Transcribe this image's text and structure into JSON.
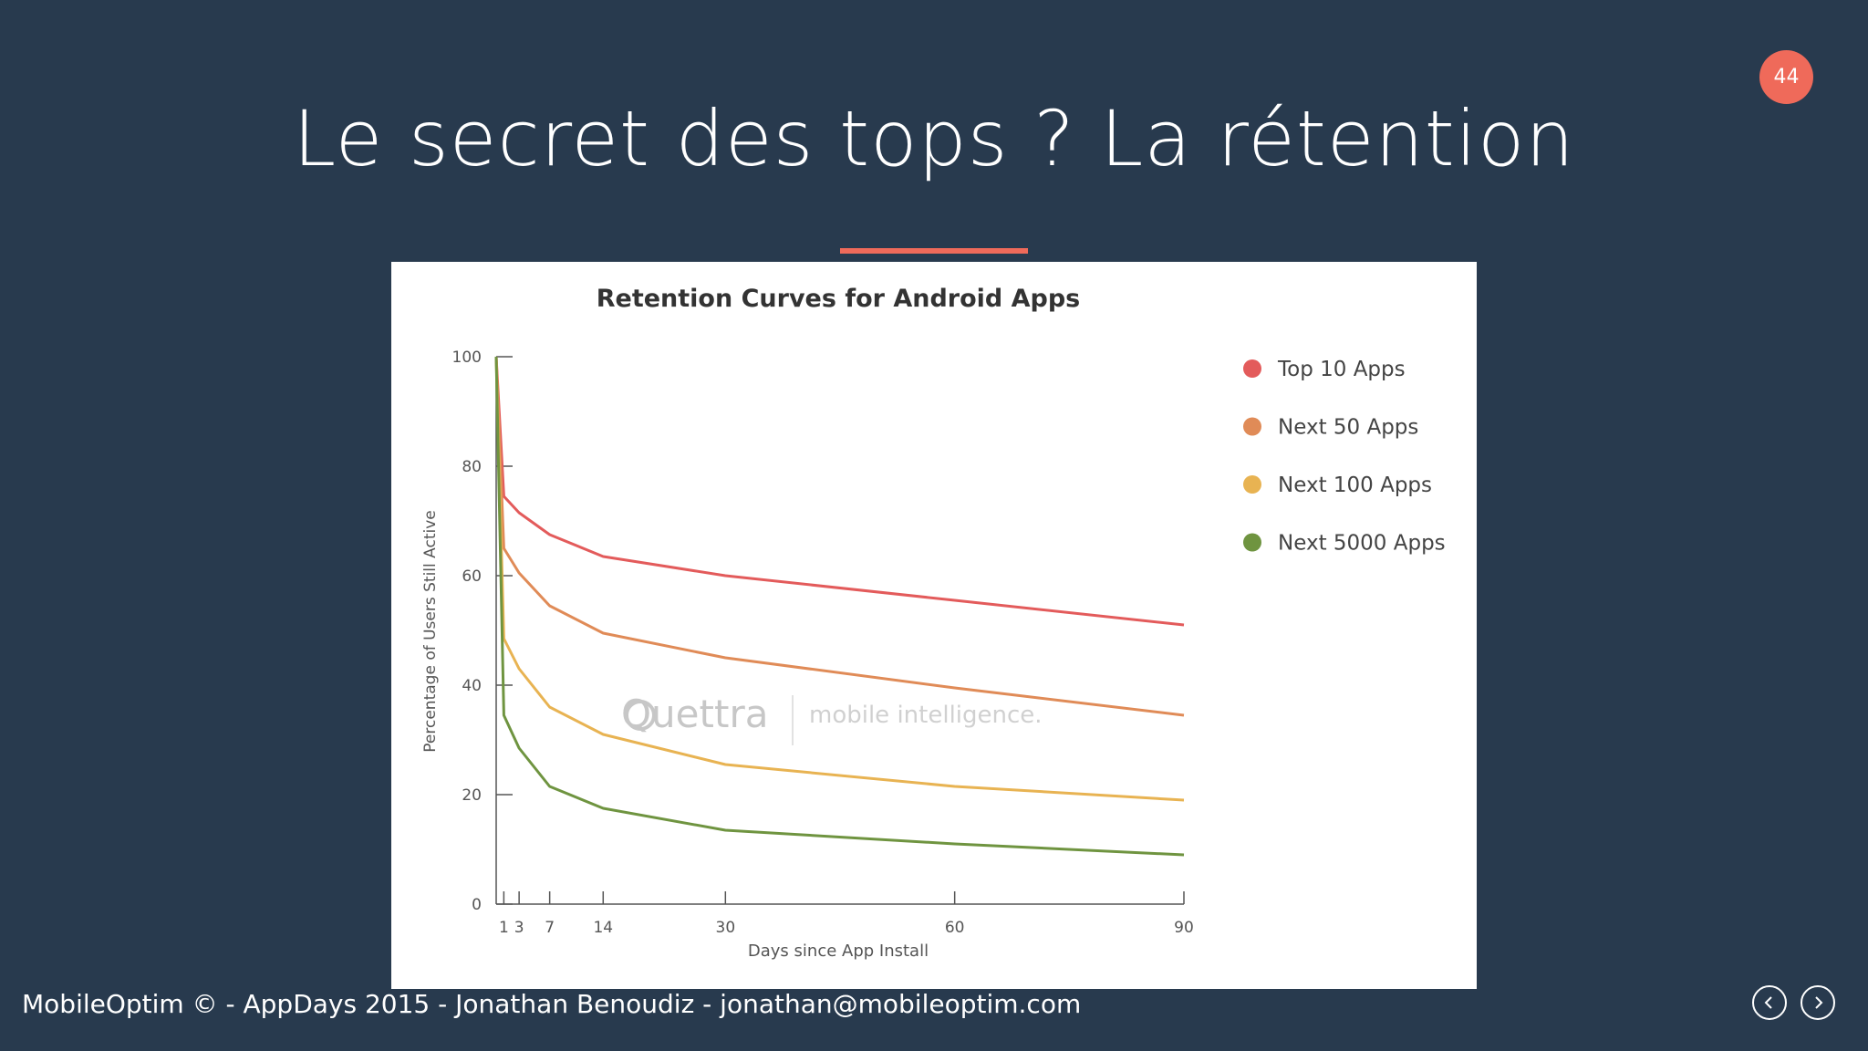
{
  "slide": {
    "number": "44",
    "title": "Le secret des tops ? La rétention",
    "footer": "MobileOptim © - AppDays 2015 - Jonathan Benoudiz - jonathan@mobileoptim.com",
    "accent_color": "#ef6a5a",
    "background_color": "#283a4e",
    "nav": {
      "prev_icon": "chevron-left-icon",
      "next_icon": "chevron-right-icon"
    }
  },
  "chart_data": {
    "type": "line",
    "title": "Retention Curves for Android Apps",
    "xlabel": "Days since App Install",
    "ylabel": "Percentage of Users Still Active",
    "x_ticks": [
      1,
      3,
      7,
      14,
      30,
      60,
      90
    ],
    "y_ticks": [
      0,
      20,
      40,
      60,
      80,
      100
    ],
    "xlim": [
      0,
      90
    ],
    "ylim": [
      0,
      100
    ],
    "grid": false,
    "legend_position": "right",
    "watermark": {
      "brand": "Quettra",
      "tagline": "mobile intelligence."
    },
    "x": [
      0,
      1,
      3,
      7,
      14,
      30,
      60,
      90
    ],
    "series": [
      {
        "name": "Top 10 Apps",
        "color": "#e35b5b",
        "values": [
          100,
          74.5,
          71.5,
          67.5,
          63.5,
          60,
          55.5,
          51
        ]
      },
      {
        "name": "Next 50 Apps",
        "color": "#e08b57",
        "values": [
          100,
          65,
          60.5,
          54.5,
          49.5,
          45,
          39.5,
          34.5
        ]
      },
      {
        "name": "Next 100 Apps",
        "color": "#e8b352",
        "values": [
          100,
          48.5,
          43,
          36,
          31,
          25.5,
          21.5,
          19
        ]
      },
      {
        "name": "Next 5000 Apps",
        "color": "#6f9440",
        "values": [
          100,
          34.5,
          28.5,
          21.5,
          17.5,
          13.5,
          11,
          9
        ]
      }
    ]
  }
}
